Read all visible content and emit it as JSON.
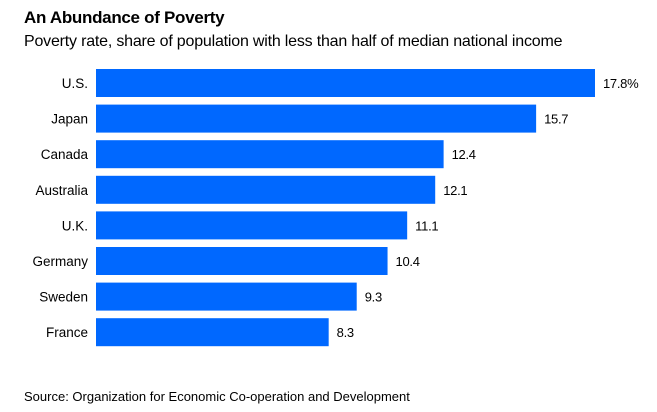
{
  "chart_data": {
    "type": "bar",
    "orientation": "horizontal",
    "title": "An Abundance of Poverty",
    "subtitle": "Poverty rate, share of population with less than half of median national income",
    "categories": [
      "U.S.",
      "Japan",
      "Canada",
      "Australia",
      "U.K.",
      "Germany",
      "Sweden",
      "France"
    ],
    "values": [
      17.8,
      15.7,
      12.4,
      12.1,
      11.1,
      10.4,
      9.3,
      8.3
    ],
    "value_labels": [
      "17.8%",
      "15.7",
      "12.4",
      "12.1",
      "11.1",
      "10.4",
      "9.3",
      "8.3"
    ],
    "xlabel": "",
    "ylabel": "",
    "xlim": [
      0,
      17.8
    ],
    "grid": false,
    "bar_color": "#0068ff",
    "source": "Source: Organization for Economic Co-operation and Development"
  }
}
